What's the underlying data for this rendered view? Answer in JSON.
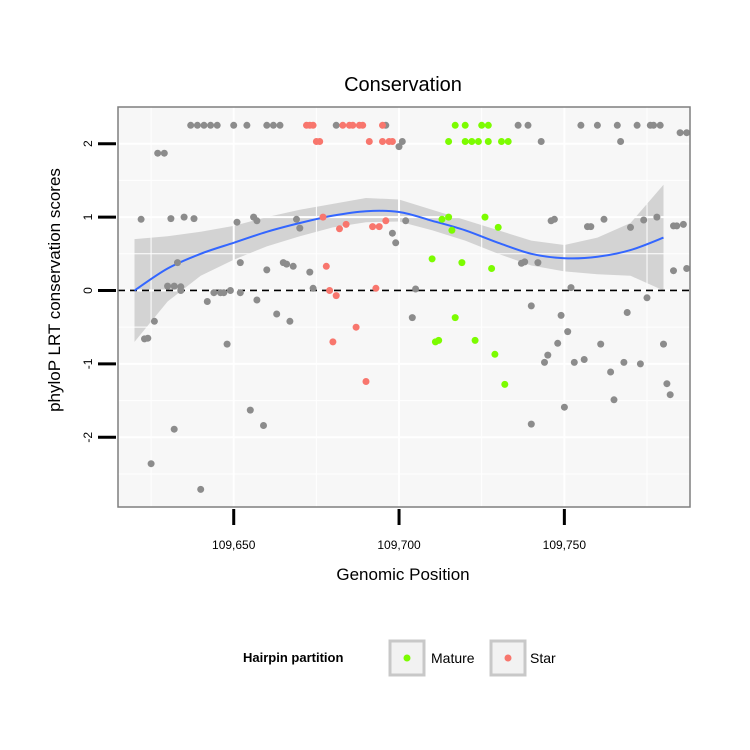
{
  "chart_data": {
    "type": "scatter",
    "title": "Conservation",
    "xlabel": "Genomic Position",
    "ylabel": "phyloP LRT conservation scores",
    "xlim": [
      109615,
      109788
    ],
    "ylim": [
      -2.95,
      2.5
    ],
    "x_ticks": [
      109650,
      109700,
      109750
    ],
    "x_tick_labels": [
      "109,650",
      "109,700",
      "109,750"
    ],
    "y_ticks": [
      -2,
      -1,
      0,
      1,
      2
    ],
    "y_tick_labels": [
      "-2",
      "-1",
      "0",
      "1",
      "2"
    ],
    "reference_line": {
      "y": 0,
      "style": "dashed"
    },
    "legend": {
      "title": "Hairpin partition",
      "position": "bottom",
      "entries": [
        {
          "label": "Mature",
          "color": "#7cfc00"
        },
        {
          "label": "Star",
          "color": "#f8766d"
        }
      ]
    },
    "colors": {
      "other": "#8c8c8c",
      "mature": "#7cfc00",
      "star": "#f8766d",
      "smooth": "#3366ff",
      "band": "#cccccc"
    },
    "series": [
      {
        "group": "other",
        "points": [
          [
            109622,
            0.97
          ],
          [
            109623,
            -0.66
          ],
          [
            109624,
            -0.65
          ],
          [
            109625,
            -2.36
          ],
          [
            109626,
            -0.42
          ],
          [
            109627,
            1.87
          ],
          [
            109629,
            1.87
          ],
          [
            109630,
            0.06
          ],
          [
            109631,
            0.98
          ],
          [
            109632,
            0.06
          ],
          [
            109632,
            -1.89
          ],
          [
            109633,
            0.38
          ],
          [
            109634,
            0.0
          ],
          [
            109634,
            0.05
          ],
          [
            109635,
            1.0
          ],
          [
            109637,
            2.25
          ],
          [
            109638,
            0.98
          ],
          [
            109639,
            2.25
          ],
          [
            109640,
            -2.71
          ],
          [
            109641,
            2.25
          ],
          [
            109642,
            -0.15
          ],
          [
            109643,
            2.25
          ],
          [
            109644,
            -0.03
          ],
          [
            109645,
            2.25
          ],
          [
            109646,
            -0.03
          ],
          [
            109647,
            -0.03
          ],
          [
            109648,
            -0.73
          ],
          [
            109649,
            -0.0
          ],
          [
            109650,
            2.25
          ],
          [
            109651,
            0.93
          ],
          [
            109652,
            0.38
          ],
          [
            109652,
            -0.03
          ],
          [
            109654,
            2.25
          ],
          [
            109655,
            -1.63
          ],
          [
            109656,
            1.0
          ],
          [
            109657,
            0.95
          ],
          [
            109657,
            -0.13
          ],
          [
            109659,
            -1.84
          ],
          [
            109660,
            0.28
          ],
          [
            109660,
            2.25
          ],
          [
            109662,
            2.25
          ],
          [
            109663,
            -0.32
          ],
          [
            109664,
            2.25
          ],
          [
            109665,
            0.38
          ],
          [
            109666,
            0.36
          ],
          [
            109667,
            -0.42
          ],
          [
            109668,
            0.33
          ],
          [
            109669,
            0.97
          ],
          [
            109670,
            0.85
          ],
          [
            109673,
            0.25
          ],
          [
            109674,
            0.03
          ],
          [
            109681,
            2.25
          ],
          [
            109696,
            2.25
          ],
          [
            109698,
            0.78
          ],
          [
            109699,
            0.65
          ],
          [
            109700,
            1.96
          ],
          [
            109701,
            2.03
          ],
          [
            109702,
            0.95
          ],
          [
            109704,
            -0.37
          ],
          [
            109705,
            0.02
          ],
          [
            109736,
            2.25
          ],
          [
            109737,
            0.37
          ],
          [
            109738,
            0.39
          ],
          [
            109739,
            2.25
          ],
          [
            109740,
            -1.82
          ],
          [
            109740,
            -0.21
          ],
          [
            109742,
            0.38
          ],
          [
            109743,
            2.03
          ],
          [
            109744,
            -0.98
          ],
          [
            109745,
            -0.88
          ],
          [
            109746,
            0.95
          ],
          [
            109747,
            0.97
          ],
          [
            109748,
            -0.72
          ],
          [
            109749,
            -0.34
          ],
          [
            109750,
            -1.59
          ],
          [
            109751,
            -0.56
          ],
          [
            109752,
            0.04
          ],
          [
            109753,
            -0.98
          ],
          [
            109755,
            2.25
          ],
          [
            109756,
            -0.94
          ],
          [
            109757,
            0.87
          ],
          [
            109758,
            0.87
          ],
          [
            109760,
            2.25
          ],
          [
            109761,
            -0.73
          ],
          [
            109762,
            0.97
          ],
          [
            109764,
            -1.11
          ],
          [
            109765,
            -1.49
          ],
          [
            109766,
            2.25
          ],
          [
            109767,
            2.03
          ],
          [
            109768,
            -0.98
          ],
          [
            109769,
            -0.3
          ],
          [
            109770,
            0.86
          ],
          [
            109772,
            2.25
          ],
          [
            109773,
            -1.0
          ],
          [
            109774,
            0.96
          ],
          [
            109775,
            -0.1
          ],
          [
            109776,
            2.25
          ],
          [
            109777,
            2.25
          ],
          [
            109778,
            1.0
          ],
          [
            109779,
            2.25
          ],
          [
            109780,
            -0.73
          ],
          [
            109781,
            -1.27
          ],
          [
            109782,
            -1.42
          ],
          [
            109783,
            0.27
          ],
          [
            109783,
            0.88
          ],
          [
            109784,
            0.88
          ],
          [
            109785,
            2.15
          ],
          [
            109786,
            0.9
          ],
          [
            109787,
            2.15
          ],
          [
            109787,
            0.3
          ]
        ]
      },
      {
        "group": "mature",
        "points": [
          [
            109710,
            0.43
          ],
          [
            109711,
            -0.7
          ],
          [
            109712,
            -0.68
          ],
          [
            109713,
            0.97
          ],
          [
            109715,
            1.0
          ],
          [
            109715,
            2.03
          ],
          [
            109716,
            0.82
          ],
          [
            109717,
            -0.37
          ],
          [
            109717,
            2.25
          ],
          [
            109719,
            0.38
          ],
          [
            109720,
            2.25
          ],
          [
            109720,
            2.03
          ],
          [
            109722,
            2.03
          ],
          [
            109723,
            -0.68
          ],
          [
            109724,
            2.03
          ],
          [
            109725,
            2.25
          ],
          [
            109726,
            1.0
          ],
          [
            109727,
            2.25
          ],
          [
            109727,
            2.03
          ],
          [
            109728,
            0.3
          ],
          [
            109729,
            -0.87
          ],
          [
            109730,
            0.86
          ],
          [
            109731,
            2.03
          ],
          [
            109732,
            -1.28
          ],
          [
            109733,
            2.03
          ]
        ]
      },
      {
        "group": "star",
        "points": [
          [
            109672,
            2.25
          ],
          [
            109673,
            2.25
          ],
          [
            109674,
            2.25
          ],
          [
            109675,
            2.03
          ],
          [
            109676,
            2.03
          ],
          [
            109677,
            1.0
          ],
          [
            109678,
            0.33
          ],
          [
            109679,
            0.0
          ],
          [
            109680,
            -0.7
          ],
          [
            109681,
            -0.07
          ],
          [
            109682,
            0.84
          ],
          [
            109683,
            2.25
          ],
          [
            109684,
            0.9
          ],
          [
            109685,
            2.25
          ],
          [
            109686,
            2.25
          ],
          [
            109687,
            -0.5
          ],
          [
            109688,
            2.25
          ],
          [
            109689,
            2.25
          ],
          [
            109690,
            -1.24
          ],
          [
            109691,
            2.03
          ],
          [
            109692,
            0.87
          ],
          [
            109693,
            0.03
          ],
          [
            109694,
            0.87
          ],
          [
            109695,
            2.03
          ],
          [
            109696,
            0.95
          ],
          [
            109697,
            2.03
          ],
          [
            109698,
            2.03
          ],
          [
            109695,
            2.25
          ]
        ]
      }
    ],
    "smooth": {
      "x": [
        109620,
        109630,
        109640,
        109650,
        109660,
        109670,
        109680,
        109690,
        109700,
        109710,
        109720,
        109730,
        109740,
        109750,
        109760,
        109770,
        109780
      ],
      "y": [
        0.0,
        0.3,
        0.5,
        0.65,
        0.8,
        0.92,
        1.02,
        1.08,
        1.07,
        0.95,
        0.82,
        0.65,
        0.5,
        0.44,
        0.46,
        0.55,
        0.72
      ],
      "lo": [
        -0.7,
        -0.15,
        0.2,
        0.42,
        0.6,
        0.74,
        0.86,
        0.93,
        0.94,
        0.82,
        0.68,
        0.5,
        0.34,
        0.26,
        0.22,
        0.2,
        0.0
      ],
      "hi": [
        0.7,
        0.74,
        0.8,
        0.88,
        1.0,
        1.1,
        1.18,
        1.26,
        1.24,
        1.1,
        0.96,
        0.82,
        0.68,
        0.62,
        0.72,
        0.92,
        1.44
      ]
    }
  }
}
